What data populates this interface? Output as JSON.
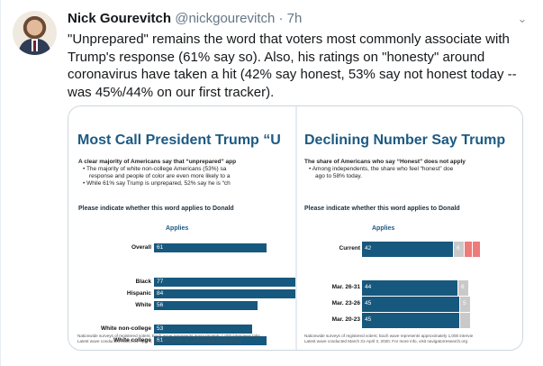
{
  "author": {
    "name": "Nick Gourevitch",
    "handle": "@nickgourevitch",
    "separator": "·",
    "time": "7h"
  },
  "tweet": {
    "lines": [
      "\"Unprepared\" remains the word that voters most commonly associate with",
      "Trump's response (61% say so). Also, his ratings on \"honesty\" around",
      "coronavirus have taken a hit (42% say honest, 53% say not honest today --",
      "was 45%/44% on our first tracker)."
    ]
  },
  "slides": {
    "left": {
      "title": "Most Call President Trump “U",
      "bullets": [
        "A clear majority of Americans say that “unprepared” app",
        "• The majority of white non-college Americans (53%) sa",
        "response and people of color are even more likely to a",
        "• While 61% say Trump is unprepared, 52% say he is “ch"
      ],
      "question": "Please indicate whether this word applies to Donald",
      "column_header": "Applies",
      "footnote": [
        "Nationwide surveys of registered voters; Each wave represents approximately 1,000 interviews take",
        "Latest wave conducted March 31-April 3, 2020. For more info, visit navigatorresearch.org"
      ]
    },
    "right": {
      "title": "Declining Number Say Trump",
      "bullets": [
        "The share of Americans who say “Honest” does not apply",
        "• Among independents, the share who feel “honest” doe",
        "ago to 58% today."
      ],
      "question": "Please indicate whether this word applies to Donald",
      "column_header": "Applies",
      "footnote": [
        "Nationwide surveys of registered voters; Each wave represents approximately 1,000 intervie",
        "Latest wave conducted March 31-April 3, 2020. For more info, visit navigatorresearch.org"
      ]
    }
  },
  "chart_data": [
    {
      "type": "bar",
      "title": "Most Call President Trump “U",
      "column_header": "Applies",
      "categories": [
        "Overall",
        "Black",
        "Hispanic",
        "White",
        "White non-college",
        "White college"
      ],
      "values": [
        61,
        77,
        84,
        56,
        53,
        61
      ],
      "bar_color": "#17587e"
    },
    {
      "type": "bar",
      "title": "Declining Number Say Trump",
      "column_header": "Applies",
      "categories": [
        "Current",
        "Mar. 26-31",
        "Mar. 23-26",
        "Mar. 20-23"
      ],
      "values": [
        42,
        44,
        45,
        45
      ],
      "other_segment_labels": [
        "6",
        "6",
        "5",
        ""
      ],
      "bar_color": "#17587e"
    }
  ],
  "colors": {
    "slide_blue": "#1c5a82",
    "bar_blue": "#17587e",
    "secondary_segment": "#c9c9c9",
    "accent_segment": "#ef7a7a",
    "text": "#14171a",
    "muted": "#657786"
  },
  "icons": {
    "menu": "chevron-down-icon"
  }
}
